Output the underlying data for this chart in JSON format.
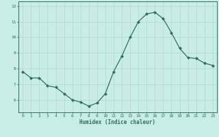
{
  "x": [
    0,
    1,
    2,
    3,
    4,
    5,
    6,
    7,
    8,
    9,
    10,
    11,
    12,
    13,
    14,
    15,
    16,
    17,
    18,
    19,
    20,
    21,
    22,
    23
  ],
  "y": [
    7.8,
    7.4,
    7.4,
    6.9,
    6.8,
    6.4,
    6.0,
    5.85,
    5.6,
    5.8,
    6.4,
    7.8,
    8.8,
    10.0,
    11.0,
    11.5,
    11.6,
    11.2,
    10.3,
    9.3,
    8.7,
    8.65,
    8.35,
    8.2
  ],
  "xlabel": "Humidex (Indice chaleur)",
  "ylim": [
    5.2,
    12.3
  ],
  "xlim": [
    -0.5,
    23.5
  ],
  "bg_color": "#c8ece8",
  "line_color": "#2d6e63",
  "grid_color": "#b8d8d4",
  "tick_color": "#2d6e63",
  "xlabel_color": "#2d6e63",
  "ytick_labels": [
    "6",
    "7",
    "8",
    "9",
    "10",
    "11",
    "12"
  ],
  "ytick_values": [
    6,
    7,
    8,
    9,
    10,
    11,
    12
  ],
  "xtick_values": [
    0,
    1,
    2,
    3,
    4,
    5,
    6,
    7,
    8,
    9,
    10,
    11,
    12,
    13,
    14,
    15,
    16,
    17,
    18,
    19,
    20,
    21,
    22,
    23
  ]
}
